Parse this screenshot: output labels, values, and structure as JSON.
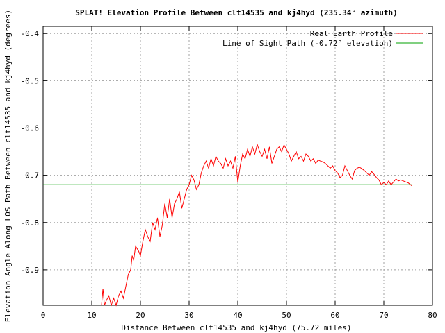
{
  "chart_data": {
    "type": "line",
    "title": "SPLAT! Elevation Profile Between clt14535 and kj4hyd (235.34° azimuth)",
    "xlabel": "Distance Between clt14535 and kj4hyd (75.72 miles)",
    "ylabel": "Elevation Angle Along LOS Path Between clt14535 and kj4hyd (degrees)",
    "xlim": [
      0,
      80
    ],
    "ylim": [
      -0.975,
      -0.385
    ],
    "x_ticks": [
      0,
      10,
      20,
      30,
      40,
      50,
      60,
      70,
      80
    ],
    "y_ticks": [
      -0.4,
      -0.5,
      -0.6,
      -0.7,
      -0.8,
      -0.9
    ],
    "x_tick_labels": [
      "0",
      "10",
      "20",
      "30",
      "40",
      "50",
      "60",
      "70",
      "80"
    ],
    "y_tick_labels": [
      "-0.4",
      "-0.5",
      "-0.6",
      "-0.7",
      "-0.8",
      "-0.9"
    ],
    "grid": true,
    "legend_position": "top-right",
    "series": [
      {
        "name": "Real Earth Profile",
        "color": "#ff0000",
        "x": [
          12.0,
          12.3,
          12.6,
          13.0,
          13.5,
          14.0,
          14.5,
          15.0,
          15.5,
          16.0,
          16.5,
          17.0,
          17.5,
          18.0,
          18.3,
          18.6,
          19.0,
          19.3,
          19.6,
          20.0,
          20.5,
          21.0,
          21.5,
          22.0,
          22.5,
          23.0,
          23.5,
          24.0,
          24.5,
          25.0,
          25.5,
          26.0,
          26.5,
          27.0,
          27.5,
          28.0,
          28.5,
          29.0,
          29.5,
          30.0,
          30.5,
          31.0,
          31.5,
          32.0,
          32.5,
          33.0,
          33.5,
          34.0,
          34.5,
          35.0,
          35.5,
          36.0,
          36.5,
          37.0,
          37.5,
          38.0,
          38.5,
          39.0,
          39.5,
          40.0,
          40.5,
          41.0,
          41.5,
          42.0,
          42.5,
          43.0,
          43.5,
          44.0,
          44.5,
          45.0,
          45.5,
          46.0,
          46.5,
          47.0,
          47.5,
          48.0,
          48.5,
          49.0,
          49.5,
          50.0,
          50.5,
          51.0,
          51.5,
          52.0,
          52.5,
          53.0,
          53.5,
          54.0,
          54.5,
          55.0,
          55.5,
          56.0,
          56.5,
          57.0,
          57.5,
          58.0,
          58.5,
          59.0,
          59.5,
          60.0,
          60.5,
          61.0,
          61.5,
          62.0,
          62.5,
          63.0,
          63.5,
          64.0,
          64.5,
          65.0,
          65.5,
          66.0,
          66.5,
          67.0,
          67.5,
          68.0,
          68.5,
          69.0,
          69.5,
          70.0,
          70.5,
          71.0,
          71.5,
          72.0,
          72.5,
          73.0,
          73.5,
          74.0,
          74.5,
          75.0,
          75.5,
          75.72
        ],
        "y": [
          -0.975,
          -0.94,
          -0.975,
          -0.965,
          -0.955,
          -0.975,
          -0.96,
          -0.975,
          -0.955,
          -0.945,
          -0.96,
          -0.935,
          -0.91,
          -0.9,
          -0.87,
          -0.88,
          -0.85,
          -0.855,
          -0.86,
          -0.87,
          -0.84,
          -0.815,
          -0.83,
          -0.84,
          -0.8,
          -0.815,
          -0.79,
          -0.83,
          -0.805,
          -0.76,
          -0.79,
          -0.75,
          -0.79,
          -0.76,
          -0.75,
          -0.735,
          -0.77,
          -0.75,
          -0.73,
          -0.72,
          -0.7,
          -0.71,
          -0.73,
          -0.72,
          -0.695,
          -0.68,
          -0.67,
          -0.685,
          -0.665,
          -0.68,
          -0.66,
          -0.67,
          -0.675,
          -0.685,
          -0.665,
          -0.68,
          -0.67,
          -0.685,
          -0.66,
          -0.715,
          -0.68,
          -0.655,
          -0.665,
          -0.645,
          -0.66,
          -0.64,
          -0.655,
          -0.635,
          -0.65,
          -0.66,
          -0.645,
          -0.665,
          -0.64,
          -0.675,
          -0.66,
          -0.645,
          -0.64,
          -0.65,
          -0.636,
          -0.645,
          -0.655,
          -0.67,
          -0.66,
          -0.65,
          -0.665,
          -0.66,
          -0.67,
          -0.655,
          -0.66,
          -0.67,
          -0.665,
          -0.675,
          -0.668,
          -0.67,
          -0.672,
          -0.675,
          -0.68,
          -0.685,
          -0.68,
          -0.69,
          -0.695,
          -0.705,
          -0.7,
          -0.68,
          -0.69,
          -0.7,
          -0.708,
          -0.69,
          -0.685,
          -0.683,
          -0.686,
          -0.69,
          -0.695,
          -0.7,
          -0.692,
          -0.698,
          -0.705,
          -0.71,
          -0.72,
          -0.715,
          -0.72,
          -0.712,
          -0.72,
          -0.714,
          -0.708,
          -0.712,
          -0.71,
          -0.712,
          -0.714,
          -0.716,
          -0.72,
          -0.722
        ]
      },
      {
        "name": "Line of Sight Path (-0.72° elevation)",
        "color": "#00a000",
        "x": [
          0,
          75.72
        ],
        "y": [
          -0.72,
          -0.72
        ]
      }
    ]
  }
}
